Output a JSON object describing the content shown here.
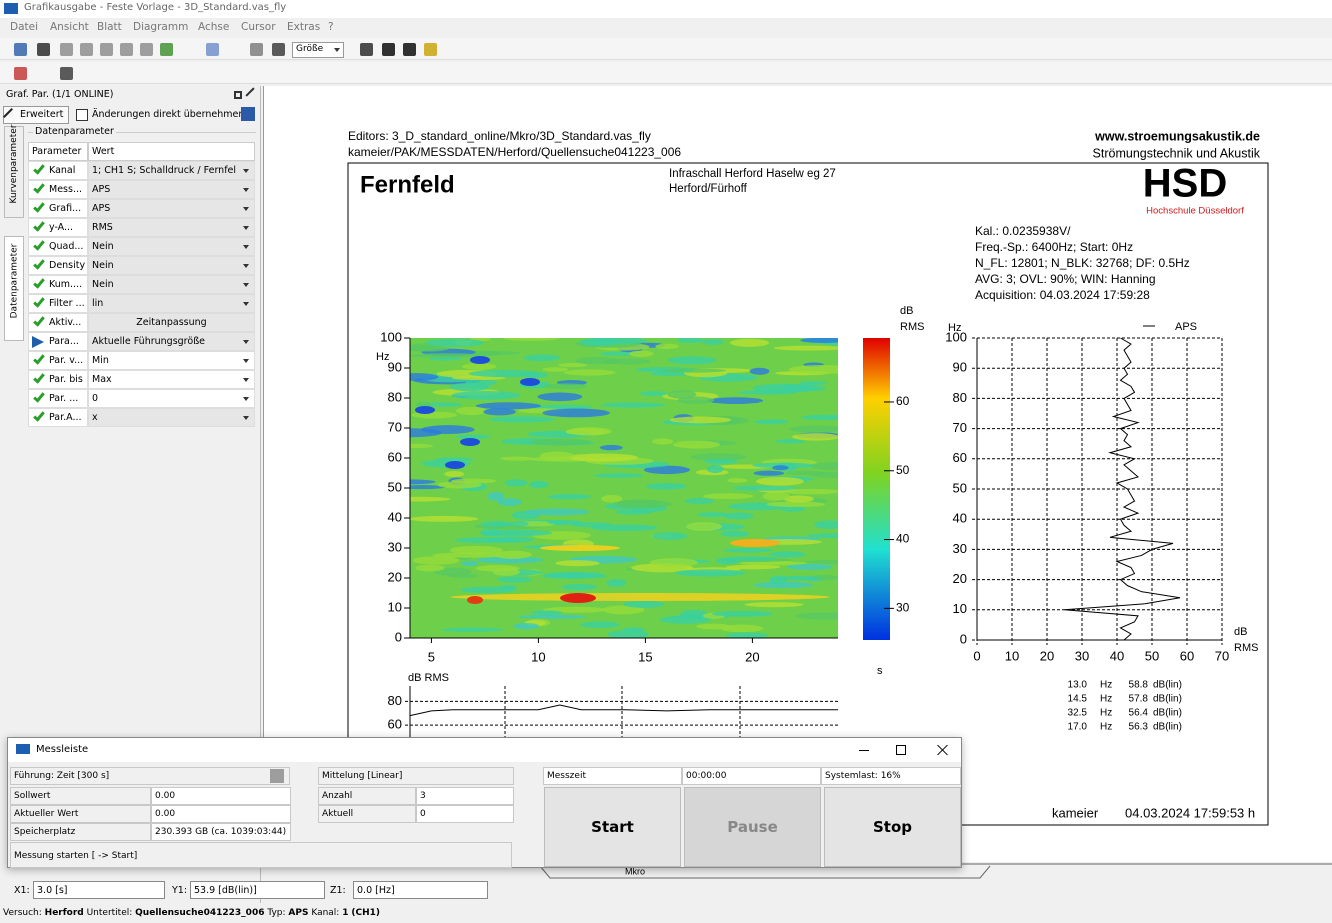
{
  "window": {
    "title": "Grafikausgabe - Feste Vorlage - 3D_Standard.vas_fly",
    "menu": [
      "Datei",
      "Ansicht",
      "Blatt",
      "Diagramm",
      "Achse",
      "Cursor",
      "Extras",
      "?"
    ],
    "size_select": "Größe"
  },
  "panel": {
    "title": "Graf. Par. (1/1 ONLINE)",
    "extended": "Erweitert",
    "checkbox": "Änderungen direkt übernehmen",
    "group": "Datenparameter",
    "tabs": [
      "Kurvenparameter",
      "Datenparameter"
    ],
    "columns": [
      "Parameter",
      "Wert"
    ],
    "rows": [
      [
        "Kanal",
        "1; CH1 S; Schalldruck / Fernfel"
      ],
      [
        "Mess...",
        "APS"
      ],
      [
        "Grafi...",
        "APS"
      ],
      [
        "y-A...",
        "RMS"
      ],
      [
        "Quad...",
        "Nein"
      ],
      [
        "Density",
        "Nein"
      ],
      [
        "Kum....",
        "Nein"
      ],
      [
        "Filter ...",
        "lin"
      ],
      [
        "Aktiv...",
        "Zeitanpassung"
      ],
      [
        "Para...",
        "Aktuelle Führungsgröße"
      ],
      [
        "Par. v...",
        "Min"
      ],
      [
        "Par. bis",
        "Max"
      ],
      [
        "Par. ...",
        "0"
      ],
      [
        "Par.A...",
        "x"
      ]
    ]
  },
  "sheet": {
    "editors": "Editors: 3_D_standard_online/Mkro/3D_Standard.vas_fly",
    "path": "kameier/PAK/MESSDATEN/Herford/Quellensuche041223_006",
    "website": "www.stroemungsakustik.de",
    "institute": "Strömungstechnik und Akustik",
    "heading": "Fernfeld",
    "location": [
      "Infraschall Herford Haselw eg 27",
      "Herford/Fürhoff"
    ],
    "logo": "HSD",
    "logo_sub": "Hochschule Düsseldorf",
    "info": [
      "Kal.: 0.0235938V/",
      "Freq.-Sp.: 6400Hz; Start: 0Hz",
      "N_FL: 12801; N_BLK: 32768; DF: 0.5Hz",
      "AVG: 3; OVL: 90%; WIN: Hanning",
      "Acquisition: 04.03.2024 17:59:28"
    ],
    "footer_user": "kameier",
    "footer_time": "04.03.2024 17:59:53 h",
    "tab": "Mkro"
  },
  "spectrogram": {
    "y_unit": "Hz",
    "xlim": [
      4,
      24
    ],
    "xticks": [
      5,
      10,
      15,
      20
    ],
    "ylim": [
      0,
      100
    ],
    "yticks": [
      0,
      10,
      20,
      30,
      40,
      50,
      60,
      70,
      80,
      90,
      100
    ]
  },
  "colorbar": {
    "unit": [
      "dB",
      "RMS"
    ],
    "lim": [
      25.4,
      69.3
    ],
    "ticks": [
      30,
      40,
      50,
      60
    ],
    "x_unit": "s"
  },
  "profile": {
    "y_unit": "Hz",
    "legend": "APS",
    "x_unit": [
      "dB",
      "RMS"
    ],
    "color": "#000000",
    "xlim": [
      0,
      70
    ],
    "xticks": [
      0,
      10,
      20,
      30,
      40,
      50,
      60,
      70
    ],
    "ylim": [
      0,
      100
    ],
    "yticks": [
      0,
      10,
      20,
      30,
      40,
      50,
      60,
      70,
      80,
      90,
      100
    ],
    "hz": [
      0,
      2,
      4,
      6,
      8,
      10,
      12,
      14,
      16,
      18,
      20,
      22,
      24,
      26,
      28,
      30,
      32,
      34,
      36,
      38,
      40,
      42,
      44,
      46,
      48,
      50,
      52,
      54,
      56,
      58,
      60,
      62,
      64,
      66,
      68,
      70,
      72,
      74,
      76,
      78,
      80,
      82,
      84,
      86,
      88,
      90,
      92,
      94,
      96,
      98,
      100
    ],
    "db": [
      42,
      44,
      41,
      45,
      46,
      25,
      48,
      58,
      47,
      43,
      41,
      45,
      44,
      40,
      47,
      50,
      56,
      38,
      44,
      42,
      41,
      46,
      42,
      45,
      44,
      43,
      40,
      46,
      44,
      42,
      45,
      38,
      44,
      42,
      43,
      41,
      46,
      39,
      44,
      43,
      42,
      45,
      44,
      41,
      43,
      42,
      44,
      43,
      42,
      44,
      41
    ]
  },
  "peaks": [
    [
      "13.0",
      "Hz",
      "58.8",
      "dB(lin)"
    ],
    [
      "14.5",
      "Hz",
      "57.8",
      "dB(lin)"
    ],
    [
      "32.5",
      "Hz",
      "56.4",
      "dB(lin)"
    ],
    [
      "17.0",
      "Hz",
      "56.3",
      "dB(lin)"
    ]
  ],
  "timeline": {
    "unit": "dB RMS",
    "ylim": [
      50,
      93
    ],
    "yticks": [
      60,
      80
    ],
    "xlim": [
      4,
      24
    ],
    "x": [
      4,
      5,
      6,
      8,
      10,
      11,
      12,
      14,
      16,
      18,
      20,
      22,
      24
    ],
    "values": [
      68,
      72,
      73,
      73,
      73,
      77,
      73,
      73,
      72,
      73,
      73,
      73,
      73
    ]
  },
  "messleiste": {
    "title": "Messleiste",
    "leading": "Führung: Zeit [300 s]",
    "fields": [
      [
        "Sollwert",
        "0.00"
      ],
      [
        "Aktueller Wert",
        "0.00"
      ],
      [
        "Speicherplatz",
        "230.393 GB (ca. 1039:03:44)"
      ]
    ],
    "start_hint": "Messung starten [ -> Start]",
    "averaging": "Mittelung [Linear]",
    "counts": [
      [
        "Anzahl",
        "3"
      ],
      [
        "Aktuell",
        "0"
      ]
    ],
    "time_label": "Messzeit",
    "time": "00:00:00",
    "load": "Systemlast:  16%",
    "buttons": [
      "Start",
      "Pause",
      "Stop"
    ]
  },
  "status": {
    "cursor": [
      [
        "X1:",
        "3.0 [s]"
      ],
      [
        "Y1:",
        "53.9 [dB(lin)]"
      ],
      [
        "Z1:",
        "0.0 [Hz]"
      ]
    ],
    "info": [
      [
        "Versuch:",
        "Herford"
      ],
      [
        "Untertitel:",
        "Quellensuche041223_006"
      ],
      [
        "Typ:",
        "APS"
      ],
      [
        "Kanal:",
        "1"
      ]
    ],
    "channel": "(CH1)"
  }
}
